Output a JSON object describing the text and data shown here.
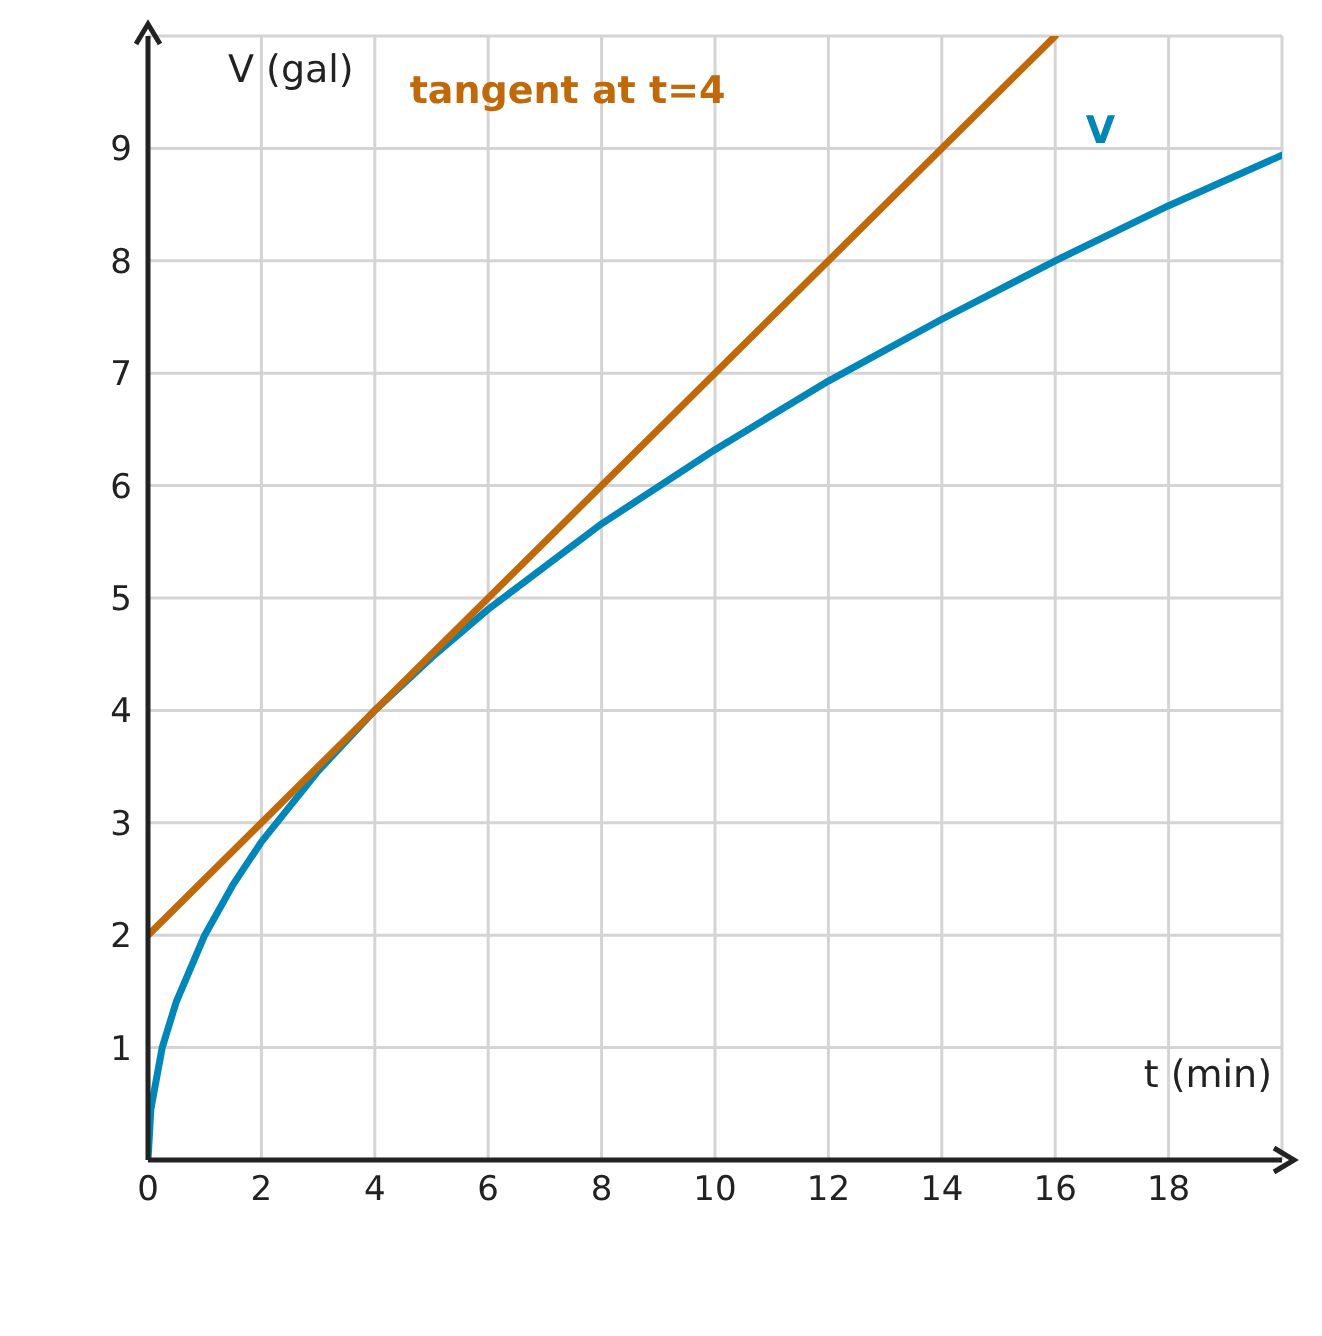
{
  "chart_data": {
    "type": "line",
    "xlabel": "t (min)",
    "ylabel": "V (gal)",
    "xlim": [
      0,
      20
    ],
    "ylim": [
      0,
      10
    ],
    "xticks": [
      0,
      2,
      4,
      6,
      8,
      10,
      12,
      14,
      16,
      18
    ],
    "yticks": [
      1,
      2,
      3,
      4,
      5,
      6,
      7,
      8,
      9
    ],
    "grid": true,
    "marker": "none",
    "line_style": "solid",
    "series": [
      {
        "name": "V",
        "color": "#0086b8",
        "x": [
          0,
          0.05,
          0.25,
          0.5,
          1,
          1.5,
          2,
          3,
          4,
          5,
          6,
          8,
          10,
          12,
          14,
          16,
          18,
          20
        ],
        "values": [
          0,
          0.45,
          1,
          1.41,
          2,
          2.45,
          2.83,
          3.46,
          4,
          4.47,
          4.9,
          5.66,
          6.32,
          6.93,
          7.48,
          8,
          8.49,
          8.94
        ]
      },
      {
        "name": "tangent at t=4",
        "color": "#c0690a",
        "x": [
          0,
          16
        ],
        "values": [
          2,
          10
        ]
      }
    ]
  }
}
